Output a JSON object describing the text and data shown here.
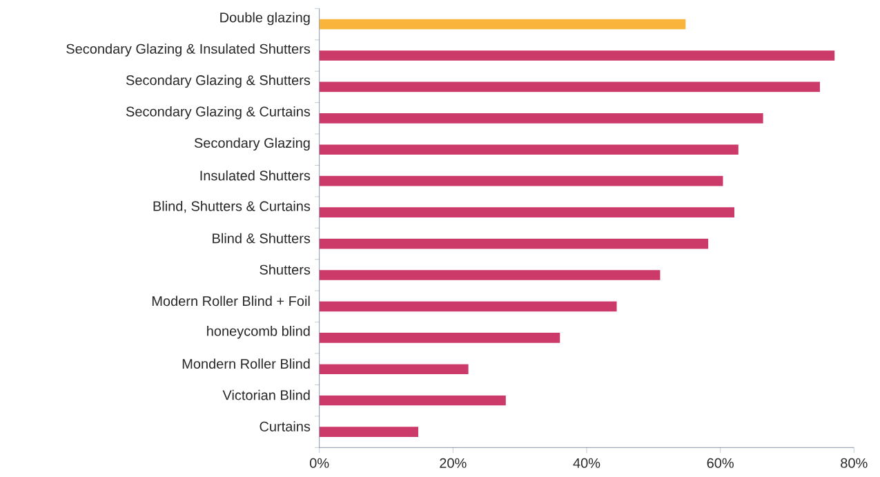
{
  "chart_data": {
    "type": "bar",
    "orientation": "horizontal",
    "categories": [
      "Double glazing",
      "Secondary Glazing & Insulated Shutters",
      "Secondary Glazing & Shutters",
      "Secondary Glazing & Curtains",
      "Secondary Glazing",
      "Insulated Shutters",
      "Blind, Shutters & Curtains",
      "Blind & Shutters",
      "Shutters",
      "Modern Roller Blind + Foil",
      "honeycomb blind",
      "Mondern Roller Blind",
      "Victorian Blind",
      "Curtains"
    ],
    "values": [
      54.8,
      77.1,
      74.9,
      66.4,
      62.7,
      60.4,
      62.1,
      58.2,
      51.0,
      44.5,
      36.0,
      22.3,
      27.9,
      14.8
    ],
    "colors": [
      "#f9b53b",
      "#cc3a6a",
      "#cc3a6a",
      "#cc3a6a",
      "#cc3a6a",
      "#cc3a6a",
      "#cc3a6a",
      "#cc3a6a",
      "#cc3a6a",
      "#cc3a6a",
      "#cc3a6a",
      "#cc3a6a",
      "#cc3a6a",
      "#cc3a6a"
    ],
    "xlim": [
      0,
      80
    ],
    "xticks": [
      {
        "value": 0,
        "label": "0%"
      },
      {
        "value": 20,
        "label": "20%"
      },
      {
        "value": 40,
        "label": "40%"
      },
      {
        "value": 60,
        "label": "60%"
      },
      {
        "value": 80,
        "label": "80%"
      }
    ],
    "grid": false
  }
}
